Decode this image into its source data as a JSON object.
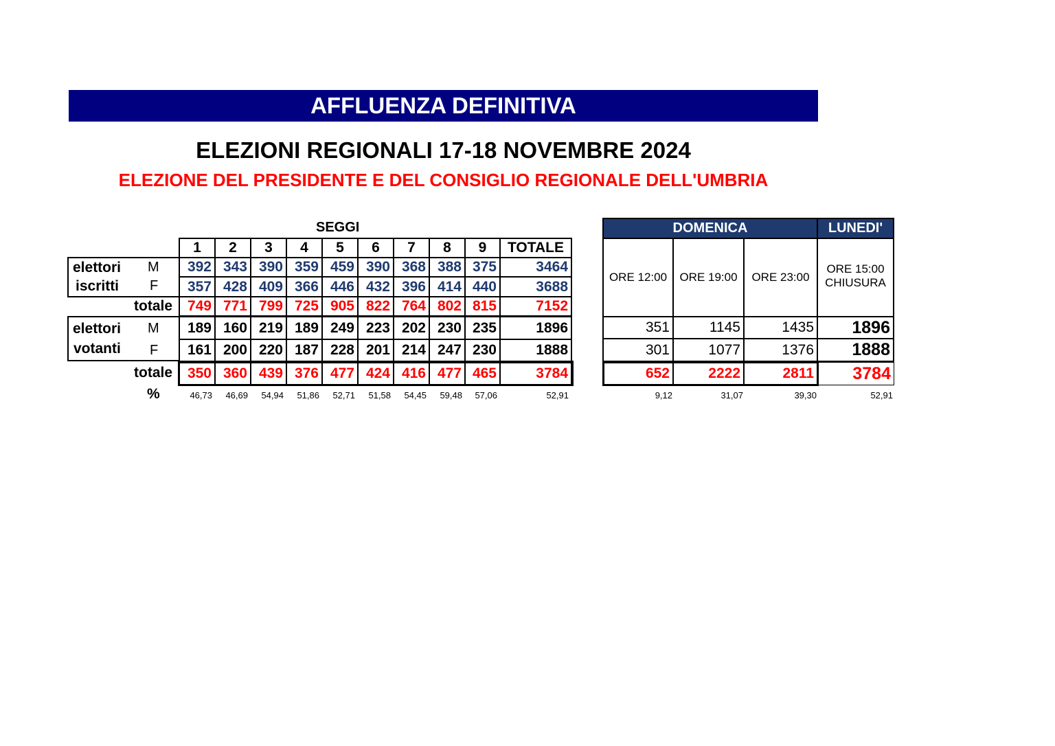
{
  "banner": "AFFLUENZA DEFINITIVA",
  "title": "ELEZIONI REGIONALI  17-18 NOVEMBRE 2024",
  "subtitle": "ELEZIONE DEL PRESIDENTE E DEL CONSIGLIO REGIONALE DELL'UMBRIA",
  "colors": {
    "banner": "#000080",
    "header": "#1f3a6e",
    "iscritti": "#1f3a6e",
    "totale": "#ff0000"
  },
  "seggi": {
    "heading": "SEGGI",
    "columns": [
      "1",
      "2",
      "3",
      "4",
      "5",
      "6",
      "7",
      "8",
      "9",
      "TOTALE"
    ],
    "iscritti": {
      "label1": "elettori",
      "label2": "iscritti",
      "m_label": "M",
      "f_label": "F",
      "m": [
        "392",
        "343",
        "390",
        "359",
        "459",
        "390",
        "368",
        "388",
        "375",
        "3464"
      ],
      "f": [
        "357",
        "428",
        "409",
        "366",
        "446",
        "432",
        "396",
        "414",
        "440",
        "3688"
      ],
      "totale_label": "totale",
      "totale": [
        "749",
        "771",
        "799",
        "725",
        "905",
        "822",
        "764",
        "802",
        "815",
        "7152"
      ]
    },
    "votanti": {
      "label1": "elettori",
      "label2": "votanti",
      "m_label": "M",
      "f_label": "F",
      "m": [
        "189",
        "160",
        "219",
        "189",
        "249",
        "223",
        "202",
        "230",
        "235",
        "1896"
      ],
      "f": [
        "161",
        "200",
        "220",
        "187",
        "228",
        "201",
        "214",
        "247",
        "230",
        "1888"
      ],
      "totale_label": "totale",
      "totale": [
        "350",
        "360",
        "439",
        "376",
        "477",
        "424",
        "416",
        "477",
        "465",
        "3784"
      ]
    },
    "pct_label": "%",
    "pct": [
      "46,73",
      "46,69",
      "54,94",
      "51,86",
      "52,71",
      "51,58",
      "54,45",
      "59,48",
      "57,06",
      "52,91"
    ]
  },
  "orari": {
    "domenica": "DOMENICA",
    "lunedi": "LUNEDI'",
    "columns": [
      "ORE 12:00",
      "ORE 19:00",
      "ORE 23:00"
    ],
    "lunedi_col1": "ORE 15:00",
    "lunedi_col2": "CHIUSURA",
    "m": [
      "351",
      "1145",
      "1435",
      "1896"
    ],
    "f": [
      "301",
      "1077",
      "1376",
      "1888"
    ],
    "totale": [
      "652",
      "2222",
      "2811",
      "3784"
    ],
    "pct": [
      "9,12",
      "31,07",
      "39,30",
      "52,91"
    ]
  }
}
